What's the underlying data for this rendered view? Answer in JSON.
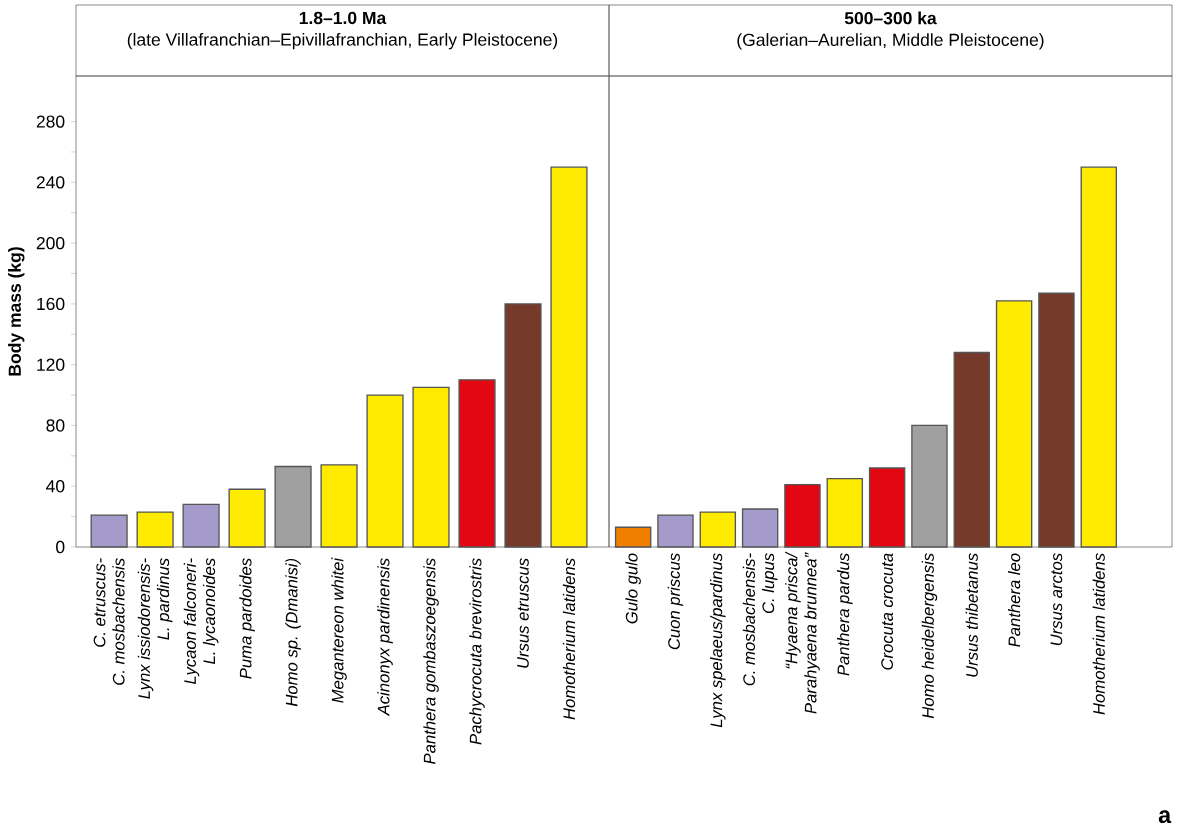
{
  "chart_data": [
    {
      "type": "bar",
      "title": "1.8–1.0 Ma",
      "subtitle": "(late Villafranchian–Epivillafranchian, Early Pleistocene)",
      "ylabel": "Body mass (kg)",
      "categories": [
        "C. etruscus-\nC. mosbachensis",
        "Lynx issiodorensis-\nL. pardinus",
        "Lycaon falconeri-\nL. lycaonoides",
        "Puma pardoides",
        "Homo sp. (Dmanisi)",
        "Megantereon whitei",
        "Acinonyx pardinensis",
        "Panthera gombaszoegensis",
        "Pachycrocuta brevirostris",
        "Ursus etruscus",
        "Homotherium latidens"
      ],
      "values": [
        21,
        23,
        28,
        38,
        53,
        54,
        100,
        105,
        110,
        160,
        250
      ],
      "colors": [
        "#a59bcb",
        "#ffeb00",
        "#a59bcb",
        "#ffeb00",
        "#a0a0a0",
        "#ffeb00",
        "#ffeb00",
        "#ffeb00",
        "#e30613",
        "#763a2a",
        "#ffeb00"
      ],
      "ylim": [
        0,
        310
      ],
      "yticks": [
        0,
        {
          "value": 20,
          "label": null
        },
        40,
        {
          "value": 60,
          "label": null
        },
        80,
        {
          "value": 100,
          "label": null
        },
        120,
        {
          "value": 140,
          "label": null
        },
        160,
        {
          "value": 180,
          "label": null
        },
        200,
        {
          "value": 220,
          "label": null
        },
        240,
        {
          "value": 260,
          "label": null
        },
        280
      ]
    },
    {
      "type": "bar",
      "title": "500–300 ka",
      "subtitle": "(Galerian–Aurelian, Middle Pleistocene)",
      "categories": [
        "Gulo gulo",
        "Cuon priscus",
        "Lynx spelaeus/pardinus",
        "C. mosbachensis-\nC. lupus",
        "“Hyaena prisca/\nParahyaena brunnea”",
        "Panthera pardus",
        "Crocuta crocuta",
        "Homo heidelbergensis",
        "Ursus thibetanus",
        "Panthera leo",
        "Ursus arctos",
        "Homotherium latidens"
      ],
      "values": [
        13,
        21,
        23,
        25,
        41,
        45,
        52,
        80,
        128,
        162,
        167,
        250
      ],
      "colors": [
        "#f07f00",
        "#a59bcb",
        "#ffeb00",
        "#a59bcb",
        "#e30613",
        "#ffeb00",
        "#e30613",
        "#a0a0a0",
        "#763a2a",
        "#ffeb00",
        "#763a2a",
        "#ffeb00"
      ],
      "ylim": [
        0,
        310
      ],
      "tick_labels": "x",
      "annotations": [
        "a"
      ]
    }
  ]
}
